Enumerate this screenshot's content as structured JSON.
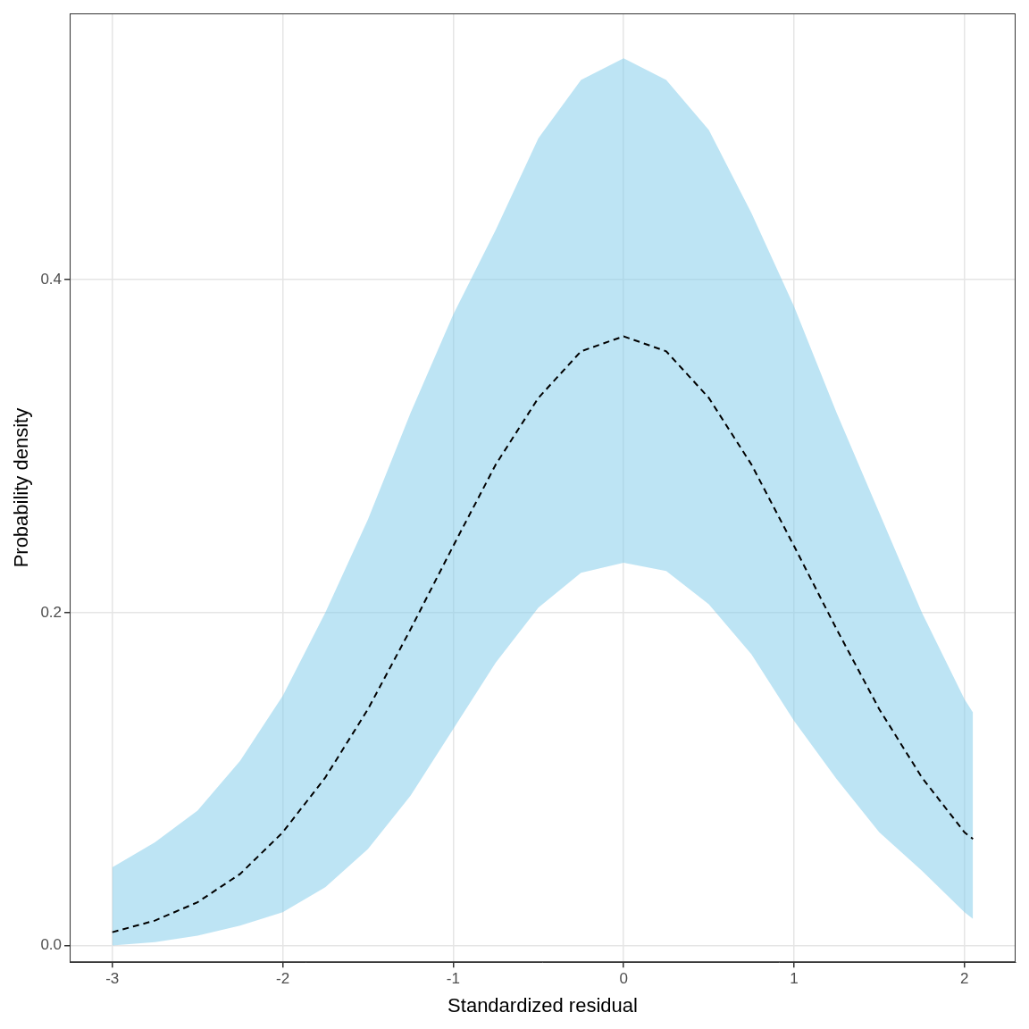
{
  "chart_data": {
    "type": "line",
    "x_label": "Standardized residual",
    "y_label": "Probability density",
    "x": [
      -3,
      -2.75,
      -2.5,
      -2.25,
      -2,
      -1.75,
      -1.5,
      -1.25,
      -1,
      -0.75,
      -0.5,
      -0.25,
      0,
      0.25,
      0.5,
      0.75,
      1,
      1.25,
      1.5,
      1.75,
      2,
      2.05
    ],
    "series": [
      {
        "values": [
          0.008,
          0.015,
          0.026,
          0.043,
          0.068,
          0.101,
          0.142,
          0.19,
          0.24,
          0.289,
          0.329,
          0.357,
          0.366,
          0.357,
          0.329,
          0.289,
          0.24,
          0.19,
          0.142,
          0.101,
          0.068,
          0.064
        ],
        "color": "#000000",
        "line_style": "dashed"
      }
    ],
    "ribbon": {
      "lower": [
        0.0,
        0.002,
        0.006,
        0.012,
        0.02,
        0.035,
        0.058,
        0.09,
        0.13,
        0.17,
        0.203,
        0.224,
        0.23,
        0.225,
        0.205,
        0.175,
        0.135,
        0.1,
        0.068,
        0.045,
        0.02,
        0.016
      ],
      "upper": [
        0.047,
        0.062,
        0.081,
        0.111,
        0.15,
        0.2,
        0.256,
        0.32,
        0.379,
        0.43,
        0.485,
        0.52,
        0.533,
        0.52,
        0.49,
        0.44,
        0.384,
        0.32,
        0.26,
        0.2,
        0.148,
        0.14
      ],
      "color": "#87ceeb"
    },
    "xlim": [
      -3.25,
      2.3
    ],
    "ylim": [
      -0.01,
      0.56
    ],
    "xticks": [
      -3,
      -2,
      -1,
      0,
      1,
      2
    ],
    "yticks": [
      {
        "value": 0,
        "label": "0.0"
      },
      0.2,
      0.4
    ],
    "grid": true
  }
}
